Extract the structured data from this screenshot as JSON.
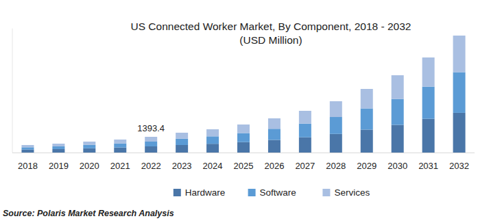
{
  "chart_data": {
    "type": "bar",
    "stacked": true,
    "title": "US Connected Worker Market, By Component, 2018 - 2032",
    "subtitle": "(USD Million)",
    "source": "Source: Polaris Market Research Analysis",
    "categories": [
      "2018",
      "2019",
      "2020",
      "2021",
      "2022",
      "2023",
      "2024",
      "2025",
      "2026",
      "2027",
      "2028",
      "2029",
      "2030",
      "2031",
      "2032"
    ],
    "series": [
      {
        "name": "Hardware",
        "color": "#4a76a8",
        "values": [
          260,
          305,
          376,
          447,
          545.2,
          667,
          775,
          925,
          1120,
          1350,
          1650,
          2030,
          2450,
          2990,
          3520
        ]
      },
      {
        "name": "Software",
        "color": "#5b9bd5",
        "values": [
          205,
          243,
          300,
          355,
          424.1,
          560,
          660,
          800,
          985,
          1210,
          1500,
          1880,
          2300,
          2850,
          3600
        ]
      },
      {
        "name": "Services",
        "color": "#a9bfe2",
        "values": [
          202,
          240,
          294,
          349,
          424.1,
          530,
          625,
          760,
          925,
          1137,
          1395,
          1726,
          2098,
          2583,
          3243
        ]
      }
    ],
    "annotations": [
      {
        "text": "1393.4",
        "x": "2022"
      }
    ],
    "ylim": [
      0,
      11000
    ],
    "yticks": [],
    "tick_labels": "x",
    "grid": false,
    "legend": "bottom"
  }
}
